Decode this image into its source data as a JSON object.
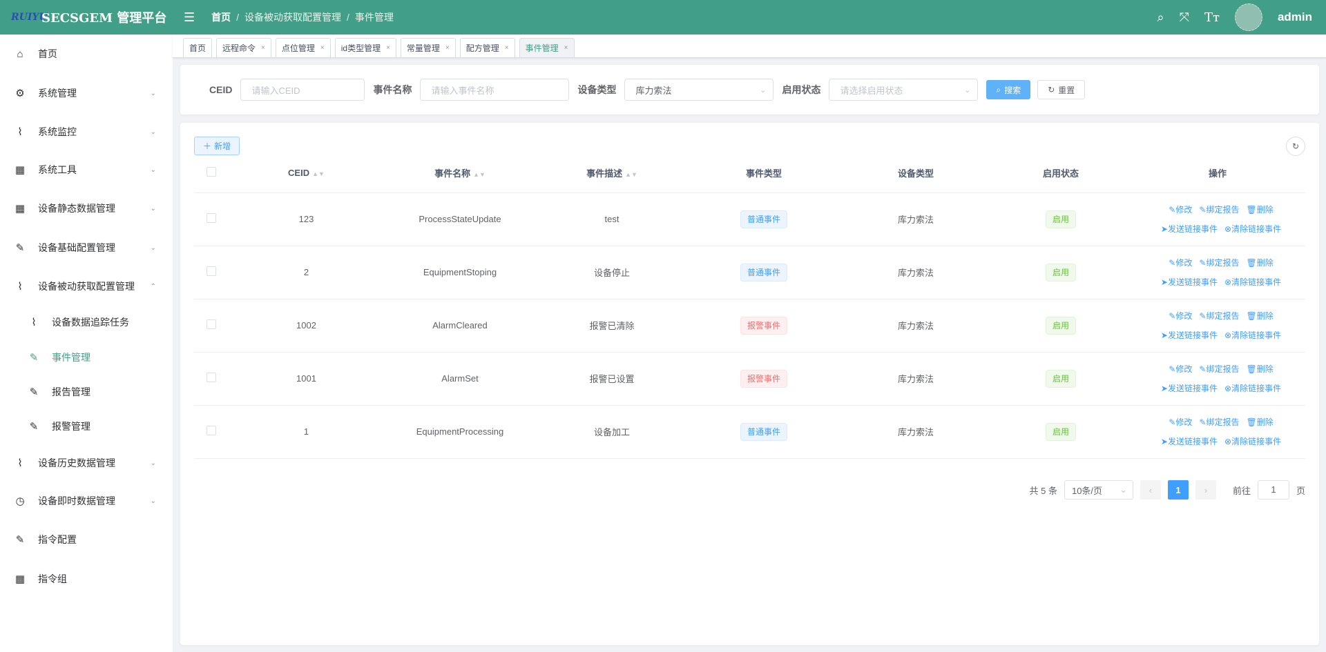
{
  "header": {
    "logo_text": "RUIYU",
    "title": "SECSGEM 管理平台",
    "breadcrumb": [
      "首页",
      "设备被动获取配置管理",
      "事件管理"
    ],
    "user": "admin"
  },
  "sidebar": [
    {
      "label": "首页",
      "icon": "home-icon",
      "chev": ""
    },
    {
      "label": "系统管理",
      "icon": "gear-icon",
      "chev": "⌄"
    },
    {
      "label": "系统监控",
      "icon": "chart-icon",
      "chev": "⌄"
    },
    {
      "label": "系统工具",
      "icon": "grid-icon",
      "chev": "⌄"
    },
    {
      "label": "设备静态数据管理",
      "icon": "grid-icon",
      "chev": "⌄"
    },
    {
      "label": "设备基础配置管理",
      "icon": "edit-icon",
      "chev": "⌄"
    },
    {
      "label": "设备被动获取配置管理",
      "icon": "chart-icon",
      "chev": "⌃"
    },
    {
      "label": "设备数据追踪任务",
      "icon": "chart-icon",
      "chev": ""
    },
    {
      "label": "事件管理",
      "icon": "edit-icon",
      "chev": ""
    },
    {
      "label": "报告管理",
      "icon": "edit-icon",
      "chev": ""
    },
    {
      "label": "报警管理",
      "icon": "edit-icon",
      "chev": ""
    },
    {
      "label": "设备历史数据管理",
      "icon": "chart-icon",
      "chev": "⌄"
    },
    {
      "label": "设备即时数据管理",
      "icon": "clock-icon",
      "chev": "⌄"
    },
    {
      "label": "指令配置",
      "icon": "edit-icon",
      "chev": ""
    },
    {
      "label": "指令组",
      "icon": "grid-icon",
      "chev": ""
    }
  ],
  "tabs": [
    {
      "label": "首页",
      "close": ""
    },
    {
      "label": "远程命令",
      "close": "×"
    },
    {
      "label": "点位管理",
      "close": "×"
    },
    {
      "label": "id类型管理",
      "close": "×"
    },
    {
      "label": "常量管理",
      "close": "×"
    },
    {
      "label": "配方管理",
      "close": "×"
    },
    {
      "label": "事件管理",
      "close": "×"
    }
  ],
  "filter": {
    "ceid_label": "CEID",
    "ceid_ph": "请输入CEID",
    "name_label": "事件名称",
    "name_ph": "请输入事件名称",
    "devtype_label": "设备类型",
    "devtype_value": "库力索法",
    "status_label": "启用状态",
    "status_ph": "请选择启用状态",
    "search": "搜索",
    "reset": "重置"
  },
  "toolbar": {
    "add": "新增"
  },
  "table": {
    "headers": [
      "CEID",
      "事件名称",
      "事件描述",
      "事件类型",
      "设备类型",
      "启用状态",
      "操作"
    ],
    "rows": [
      {
        "ceid": "123",
        "name": "ProcessStateUpdate",
        "desc": "test",
        "type": "普通事件",
        "tcolor": "blue",
        "dev": "库力索法",
        "status": "启用"
      },
      {
        "ceid": "2",
        "name": "EquipmentStoping",
        "desc": "设备停止",
        "type": "普通事件",
        "tcolor": "blue",
        "dev": "库力索法",
        "status": "启用"
      },
      {
        "ceid": "1002",
        "name": "AlarmCleared",
        "desc": "报警已清除",
        "type": "报警事件",
        "tcolor": "red",
        "dev": "库力索法",
        "status": "启用"
      },
      {
        "ceid": "1001",
        "name": "AlarmSet",
        "desc": "报警已设置",
        "type": "报警事件",
        "tcolor": "red",
        "dev": "库力索法",
        "status": "启用"
      },
      {
        "ceid": "1",
        "name": "EquipmentProcessing",
        "desc": "设备加工",
        "type": "普通事件",
        "tcolor": "blue",
        "dev": "库力索法",
        "status": "启用"
      }
    ],
    "actions": [
      "修改",
      "绑定报告",
      "删除",
      "发送链接事件",
      "清除链接事件"
    ]
  },
  "pagination": {
    "total": "共 5 条",
    "page_size": "10条/页",
    "current": "1",
    "goto_label": "前往",
    "goto_value": "1",
    "page_suffix": "页"
  }
}
